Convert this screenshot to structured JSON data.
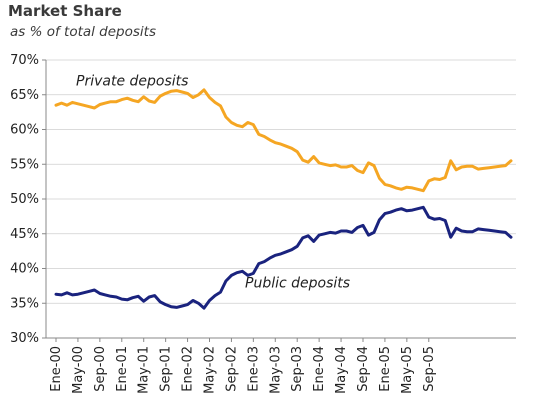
{
  "chart_data": {
    "type": "line",
    "title": "Market Share",
    "subtitle": "as % of total deposits",
    "xlabel": "",
    "ylabel": "",
    "ylim": [
      30,
      70
    ],
    "y_ticks": [
      30,
      35,
      40,
      45,
      50,
      55,
      60,
      65,
      70
    ],
    "y_tick_suffix": "%",
    "x_tick_labels": [
      "Ene-00",
      "May-00",
      "Sep-00",
      "Ene-01",
      "May-01",
      "Sep-01",
      "Ene-02",
      "May-02",
      "Sep-02",
      "Ene-03",
      "May-03",
      "Sep-03",
      "Ene-04",
      "May-04",
      "Sep-04",
      "Ene-05",
      "May-05",
      "Sep-05"
    ],
    "x_start": "Ene-00",
    "x_step": "month",
    "grid": "horizontal",
    "series": [
      {
        "name": "Private deposits",
        "color": "#F5A623",
        "values": [
          63.5,
          63.8,
          63.5,
          63.9,
          63.7,
          63.5,
          63.3,
          63.1,
          63.6,
          63.8,
          64.0,
          64.0,
          64.3,
          64.5,
          64.2,
          64.0,
          64.7,
          64.1,
          63.9,
          64.8,
          65.2,
          65.5,
          65.6,
          65.4,
          65.2,
          64.6,
          65.0,
          65.7,
          64.6,
          63.9,
          63.4,
          61.8,
          61.0,
          60.6,
          60.4,
          61.0,
          60.7,
          59.3,
          59.0,
          58.5,
          58.1,
          57.9,
          57.6,
          57.3,
          56.8,
          55.6,
          55.3,
          56.1,
          55.2,
          55.0,
          54.8,
          54.9,
          54.6,
          54.6,
          54.8,
          54.1,
          53.8,
          55.2,
          54.8,
          53.0,
          52.1,
          51.9,
          51.6,
          51.4,
          51.7,
          51.6,
          51.4,
          51.2,
          52.6,
          52.9,
          52.8,
          53.1,
          55.5,
          54.2,
          54.6,
          54.7,
          54.7,
          54.3,
          54.4,
          54.5,
          54.6,
          54.7,
          54.8,
          55.5
        ]
      },
      {
        "name": "Public deposits",
        "color": "#1A237E",
        "values": [
          36.3,
          36.2,
          36.5,
          36.2,
          36.3,
          36.5,
          36.7,
          36.9,
          36.4,
          36.2,
          36.0,
          35.9,
          35.6,
          35.5,
          35.8,
          36.0,
          35.3,
          35.9,
          36.1,
          35.2,
          34.8,
          34.5,
          34.4,
          34.6,
          34.8,
          35.4,
          35.0,
          34.3,
          35.4,
          36.1,
          36.6,
          38.2,
          39.0,
          39.4,
          39.6,
          39.0,
          39.3,
          40.7,
          41.0,
          41.5,
          41.9,
          42.1,
          42.4,
          42.7,
          43.2,
          44.4,
          44.7,
          43.9,
          44.8,
          45.0,
          45.2,
          45.1,
          45.4,
          45.4,
          45.2,
          45.9,
          46.2,
          44.8,
          45.2,
          47.0,
          47.9,
          48.1,
          48.4,
          48.6,
          48.3,
          48.4,
          48.6,
          48.8,
          47.4,
          47.1,
          47.2,
          46.9,
          44.5,
          45.8,
          45.4,
          45.3,
          45.3,
          45.7,
          45.6,
          45.5,
          45.4,
          45.3,
          45.2,
          44.5
        ]
      }
    ]
  }
}
